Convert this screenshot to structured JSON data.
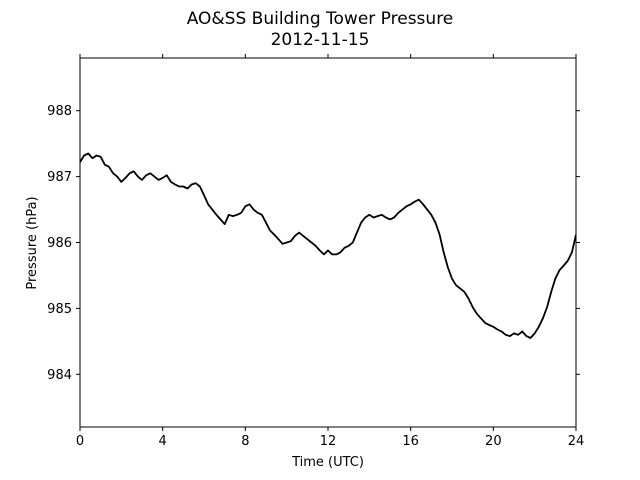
{
  "chart_data": {
    "type": "line",
    "title": "AO&SS Building Tower Pressure",
    "subtitle": "2012-11-15",
    "xlabel": "Time (UTC)",
    "ylabel": "Pressure (hPa)",
    "xlim": [
      0,
      24
    ],
    "ylim": [
      983.2,
      988.8
    ],
    "xticks": [
      0,
      4,
      8,
      12,
      16,
      20,
      24
    ],
    "yticks": [
      984,
      985,
      986,
      987,
      988
    ],
    "grid": false,
    "line_color": "#000000",
    "series": [
      {
        "x": [
          0,
          0.2,
          0.4,
          0.6,
          0.8,
          1.0,
          1.2,
          1.4,
          1.6,
          1.8,
          2.0,
          2.2,
          2.4,
          2.6,
          2.8,
          3.0,
          3.2,
          3.4,
          3.6,
          3.8,
          4.0,
          4.2,
          4.4,
          4.6,
          4.8,
          5.0,
          5.2,
          5.4,
          5.6,
          5.8,
          6.0,
          6.2,
          6.4,
          6.6,
          6.8,
          7.0,
          7.2,
          7.4,
          7.6,
          7.8,
          8.0,
          8.2,
          8.4,
          8.6,
          8.8,
          9.0,
          9.2,
          9.4,
          9.6,
          9.8,
          10.0,
          10.2,
          10.4,
          10.6,
          10.8,
          11.0,
          11.2,
          11.4,
          11.6,
          11.8,
          12.0,
          12.2,
          12.4,
          12.6,
          12.8,
          13.0,
          13.2,
          13.4,
          13.6,
          13.8,
          14.0,
          14.2,
          14.4,
          14.6,
          14.8,
          15.0,
          15.2,
          15.4,
          15.6,
          15.8,
          16.0,
          16.2,
          16.4,
          16.6,
          16.8,
          17.0,
          17.2,
          17.4,
          17.6,
          17.8,
          18.0,
          18.2,
          18.4,
          18.6,
          18.8,
          19.0,
          19.2,
          19.4,
          19.6,
          19.8,
          20.0,
          20.2,
          20.4,
          20.6,
          20.8,
          21.0,
          21.2,
          21.4,
          21.6,
          21.8,
          22.0,
          22.2,
          22.4,
          22.6,
          22.8,
          23.0,
          23.2,
          23.4,
          23.6,
          23.8,
          24.0
        ],
        "values": [
          987.22,
          987.32,
          987.35,
          987.28,
          987.32,
          987.3,
          987.18,
          987.15,
          987.05,
          987.0,
          986.92,
          986.98,
          987.05,
          987.08,
          987.0,
          986.95,
          987.02,
          987.05,
          987.0,
          986.95,
          986.98,
          987.02,
          986.92,
          986.88,
          986.85,
          986.85,
          986.82,
          986.88,
          986.9,
          986.85,
          986.72,
          986.58,
          986.5,
          986.42,
          986.35,
          986.28,
          986.42,
          986.4,
          986.42,
          986.45,
          986.55,
          986.58,
          986.5,
          986.45,
          986.42,
          986.3,
          986.18,
          986.12,
          986.05,
          985.98,
          986.0,
          986.02,
          986.1,
          986.15,
          986.1,
          986.05,
          986.0,
          985.95,
          985.88,
          985.82,
          985.88,
          985.82,
          985.82,
          985.85,
          985.92,
          985.95,
          986.0,
          986.15,
          986.3,
          986.38,
          986.42,
          986.38,
          986.4,
          986.42,
          986.38,
          986.35,
          986.38,
          986.45,
          986.5,
          986.55,
          986.58,
          986.62,
          986.65,
          986.58,
          986.5,
          986.42,
          986.3,
          986.12,
          985.85,
          985.62,
          985.45,
          985.35,
          985.3,
          985.25,
          985.15,
          985.02,
          984.92,
          984.85,
          984.78,
          984.75,
          984.72,
          984.68,
          984.65,
          984.6,
          984.58,
          984.62,
          984.6,
          984.65,
          984.58,
          984.55,
          984.62,
          984.72,
          984.85,
          985.02,
          985.25,
          985.45,
          985.58,
          985.65,
          985.72,
          985.85,
          986.12
        ]
      }
    ]
  }
}
